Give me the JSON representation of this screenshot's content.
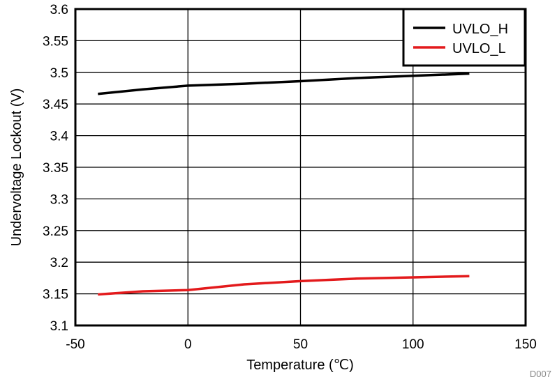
{
  "chart_data": {
    "type": "line",
    "title": "",
    "xlabel": "Temperature (℃)",
    "ylabel": "Undervoltage Lockout (V)",
    "xlim": [
      -50,
      150
    ],
    "ylim": [
      3.1,
      3.6
    ],
    "xticks": [
      -50,
      0,
      50,
      100,
      150
    ],
    "xtick_labels": [
      "-50",
      "0",
      "50",
      "100",
      "150"
    ],
    "yticks": [
      3.1,
      3.15,
      3.2,
      3.25,
      3.3,
      3.35,
      3.4,
      3.45,
      3.5,
      3.55,
      3.6
    ],
    "ytick_labels": [
      "3.1",
      "3.15",
      "3.2",
      "3.25",
      "3.3",
      "3.35",
      "3.4",
      "3.45",
      "3.5",
      "3.55",
      "3.6"
    ],
    "grid": true,
    "legend_position": "top-right",
    "series": [
      {
        "name": "UVLO_H",
        "color": "#000000",
        "x": [
          -40,
          -20,
          0,
          25,
          50,
          75,
          100,
          125
        ],
        "y": [
          3.466,
          3.473,
          3.479,
          3.482,
          3.486,
          3.491,
          3.4945,
          3.498
        ]
      },
      {
        "name": "UVLO_L",
        "color": "#e31a1c",
        "x": [
          -40,
          -20,
          0,
          25,
          50,
          75,
          100,
          125
        ],
        "y": [
          3.149,
          3.154,
          3.156,
          3.165,
          3.17,
          3.174,
          3.176,
          3.178
        ]
      }
    ],
    "annotation": "D007"
  }
}
